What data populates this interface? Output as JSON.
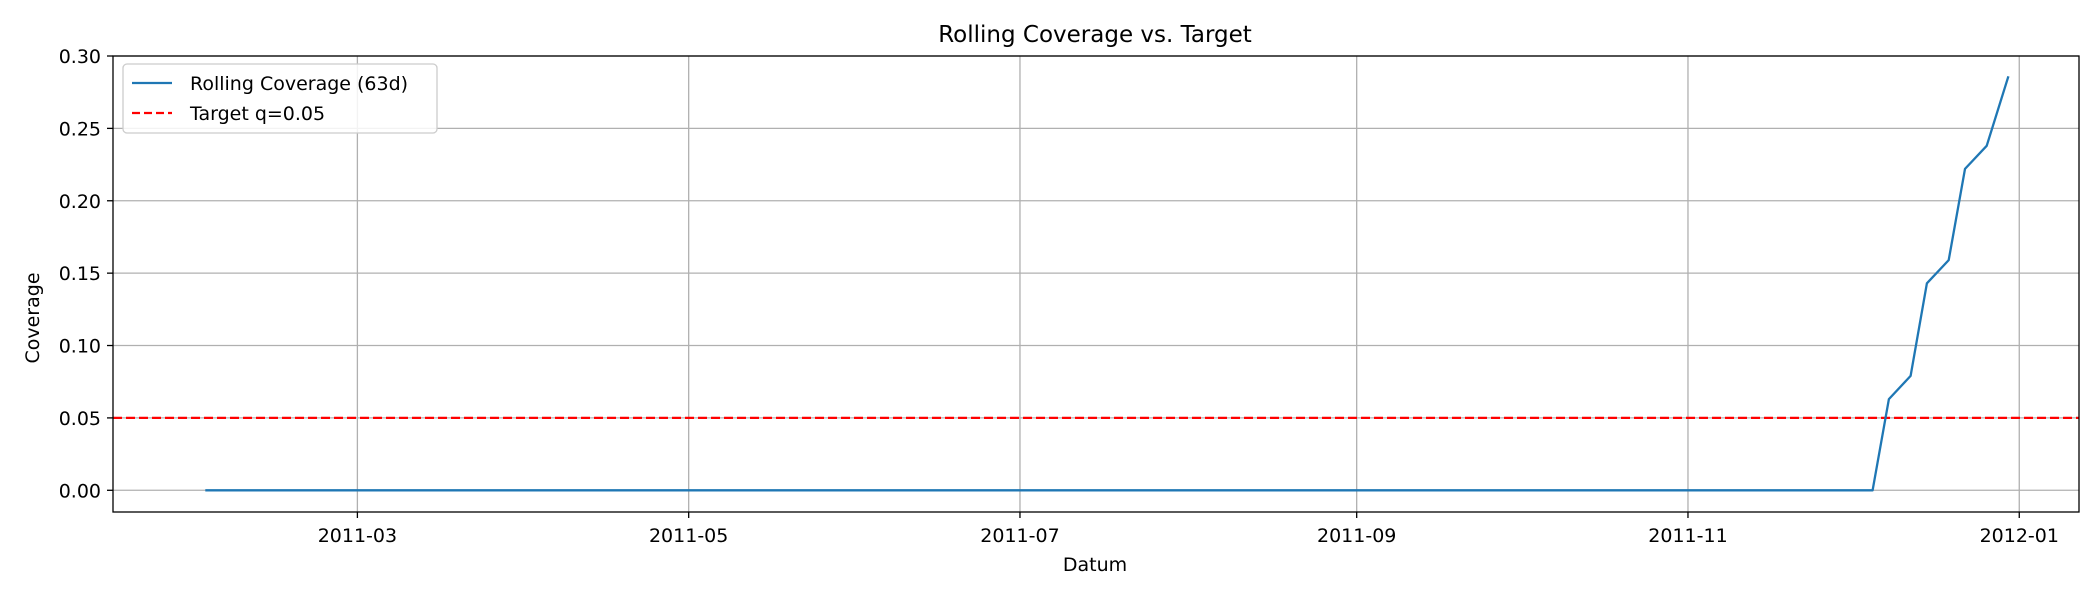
{
  "chart_data": {
    "type": "line",
    "title": "Rolling Coverage vs. Target",
    "xlabel": "Datum",
    "ylabel": "Coverage",
    "xlim": [
      "2011-01-15",
      "2012-01-12"
    ],
    "ylim": [
      -0.015,
      0.3
    ],
    "x_ticks": [
      "2011-03-01",
      "2011-05-01",
      "2011-07-01",
      "2011-09-01",
      "2011-11-01",
      "2012-01-01"
    ],
    "x_tick_labels": [
      "2011-03",
      "2011-05",
      "2011-07",
      "2011-09",
      "2011-11",
      "2012-01"
    ],
    "y_ticks": [
      0.0,
      0.05,
      0.1,
      0.15,
      0.2,
      0.25,
      0.3
    ],
    "y_tick_labels": [
      "0.00",
      "0.05",
      "0.10",
      "0.15",
      "0.20",
      "0.25",
      "0.30"
    ],
    "grid": true,
    "legend_position": "top-left",
    "series": [
      {
        "name": "Rolling Coverage (63d)",
        "color": "#1f77b4",
        "style": "solid",
        "x": [
          "2011-02-01",
          "2011-12-05",
          "2011-12-08",
          "2011-12-12",
          "2011-12-15",
          "2011-12-19",
          "2011-12-22",
          "2011-12-26",
          "2011-12-30"
        ],
        "y": [
          0.0,
          0.0,
          0.063,
          0.079,
          0.143,
          0.159,
          0.222,
          0.238,
          0.286
        ]
      },
      {
        "name": "Target q=0.05",
        "color": "#ff0000",
        "style": "dashed",
        "y_const": 0.05
      }
    ]
  }
}
